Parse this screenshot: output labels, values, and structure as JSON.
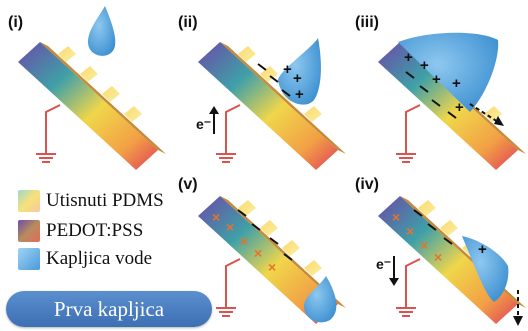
{
  "panels": [
    {
      "label": "(i)"
    },
    {
      "label": "(ii)",
      "electron": "e⁻"
    },
    {
      "label": "(iii)"
    },
    {
      "label": "(v)"
    },
    {
      "label": "(iv)",
      "electron": "e⁻"
    }
  ],
  "legend": [
    {
      "label": "Utisnuti PDMS",
      "color": "#f2e08c"
    },
    {
      "label": "PEDOT:PSS",
      "color": "#8d6a9e"
    },
    {
      "label": "Kapljica vode",
      "color": "#6aaee0"
    }
  ],
  "button": {
    "label": "Prva kapljica"
  },
  "colors": {
    "drop": "#5aa7df",
    "ground": "#d9534f",
    "minus": "#111111",
    "plus_dark": "#111111",
    "plus_orange": "#e8722a"
  }
}
